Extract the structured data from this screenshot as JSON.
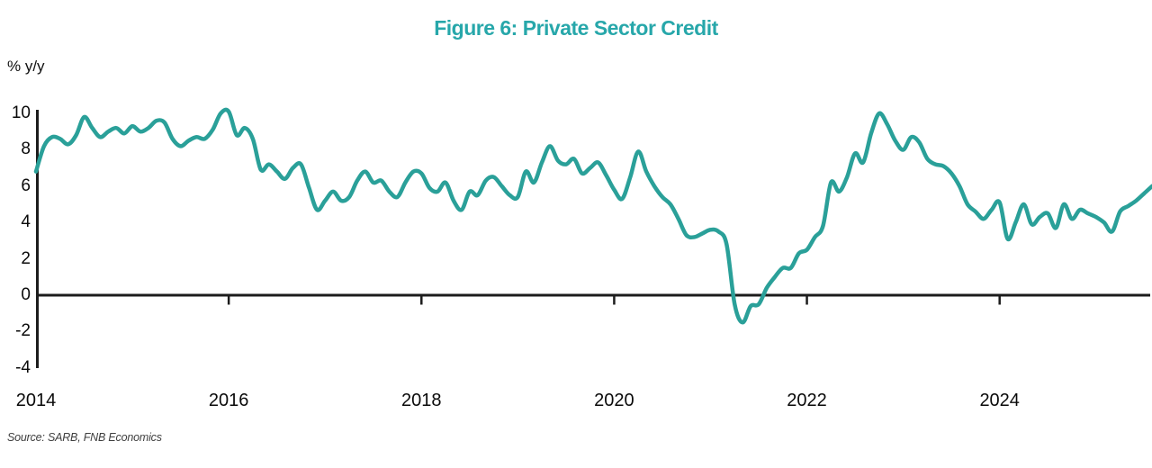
{
  "figure": {
    "title": "Figure 6: Private Sector Credit",
    "unit_label": "% y/y",
    "source_note": "Source: SARB, FNB Economics"
  },
  "chart_data": {
    "type": "line",
    "title": "Figure 6: Private Sector Credit",
    "ylabel": "% y/y",
    "xlabel": "",
    "frequency": "monthly",
    "x_start": "2014-01",
    "x_end": "2025-08",
    "values": [
      6.8,
      8.2,
      8.7,
      8.6,
      8.3,
      8.8,
      9.8,
      9.2,
      8.7,
      9.0,
      9.2,
      8.9,
      9.3,
      9.0,
      9.2,
      9.6,
      9.5,
      8.6,
      8.2,
      8.5,
      8.7,
      8.6,
      9.1,
      10.0,
      10.1,
      8.8,
      9.2,
      8.6,
      6.9,
      7.2,
      6.8,
      6.4,
      7.0,
      7.2,
      5.9,
      4.7,
      5.2,
      5.7,
      5.2,
      5.4,
      6.3,
      6.8,
      6.2,
      6.3,
      5.7,
      5.4,
      6.2,
      6.8,
      6.7,
      5.9,
      5.7,
      6.2,
      5.2,
      4.7,
      5.7,
      5.5,
      6.3,
      6.5,
      6.0,
      5.5,
      5.4,
      6.8,
      6.2,
      7.3,
      8.2,
      7.4,
      7.2,
      7.5,
      6.7,
      7.0,
      7.3,
      6.6,
      5.8,
      5.3,
      6.5,
      7.9,
      6.8,
      6.0,
      5.4,
      5.0,
      4.2,
      3.3,
      3.2,
      3.4,
      3.6,
      3.5,
      2.8,
      -0.5,
      -1.5,
      -0.6,
      -0.5,
      0.4,
      1.0,
      1.5,
      1.5,
      2.3,
      2.5,
      3.2,
      3.8,
      6.2,
      5.7,
      6.5,
      7.8,
      7.3,
      8.9,
      10.0,
      9.4,
      8.5,
      8.0,
      8.7,
      8.4,
      7.5,
      7.2,
      7.1,
      6.7,
      6.0,
      5.0,
      4.6,
      4.2,
      4.7,
      5.1,
      3.1,
      4.0,
      5.0,
      3.9,
      4.3,
      4.5,
      3.7,
      5.0,
      4.2,
      4.7,
      4.5,
      4.3,
      4.0,
      3.5,
      4.6,
      4.9,
      5.2,
      5.6,
      6.0
    ],
    "x_tick_labels": [
      "2014",
      "2016",
      "2018",
      "2020",
      "2022",
      "2024"
    ],
    "x_tick_years": [
      2014,
      2016,
      2018,
      2020,
      2022,
      2024
    ],
    "y_ticks": [
      10,
      8,
      6,
      4,
      2,
      0,
      -2,
      -4
    ],
    "ylim": [
      -4,
      10.5
    ],
    "grid": "off",
    "legend": "none",
    "line_color": "#2aa099",
    "title_color": "#27a7aa",
    "axis_color": "#1c1c1c"
  }
}
